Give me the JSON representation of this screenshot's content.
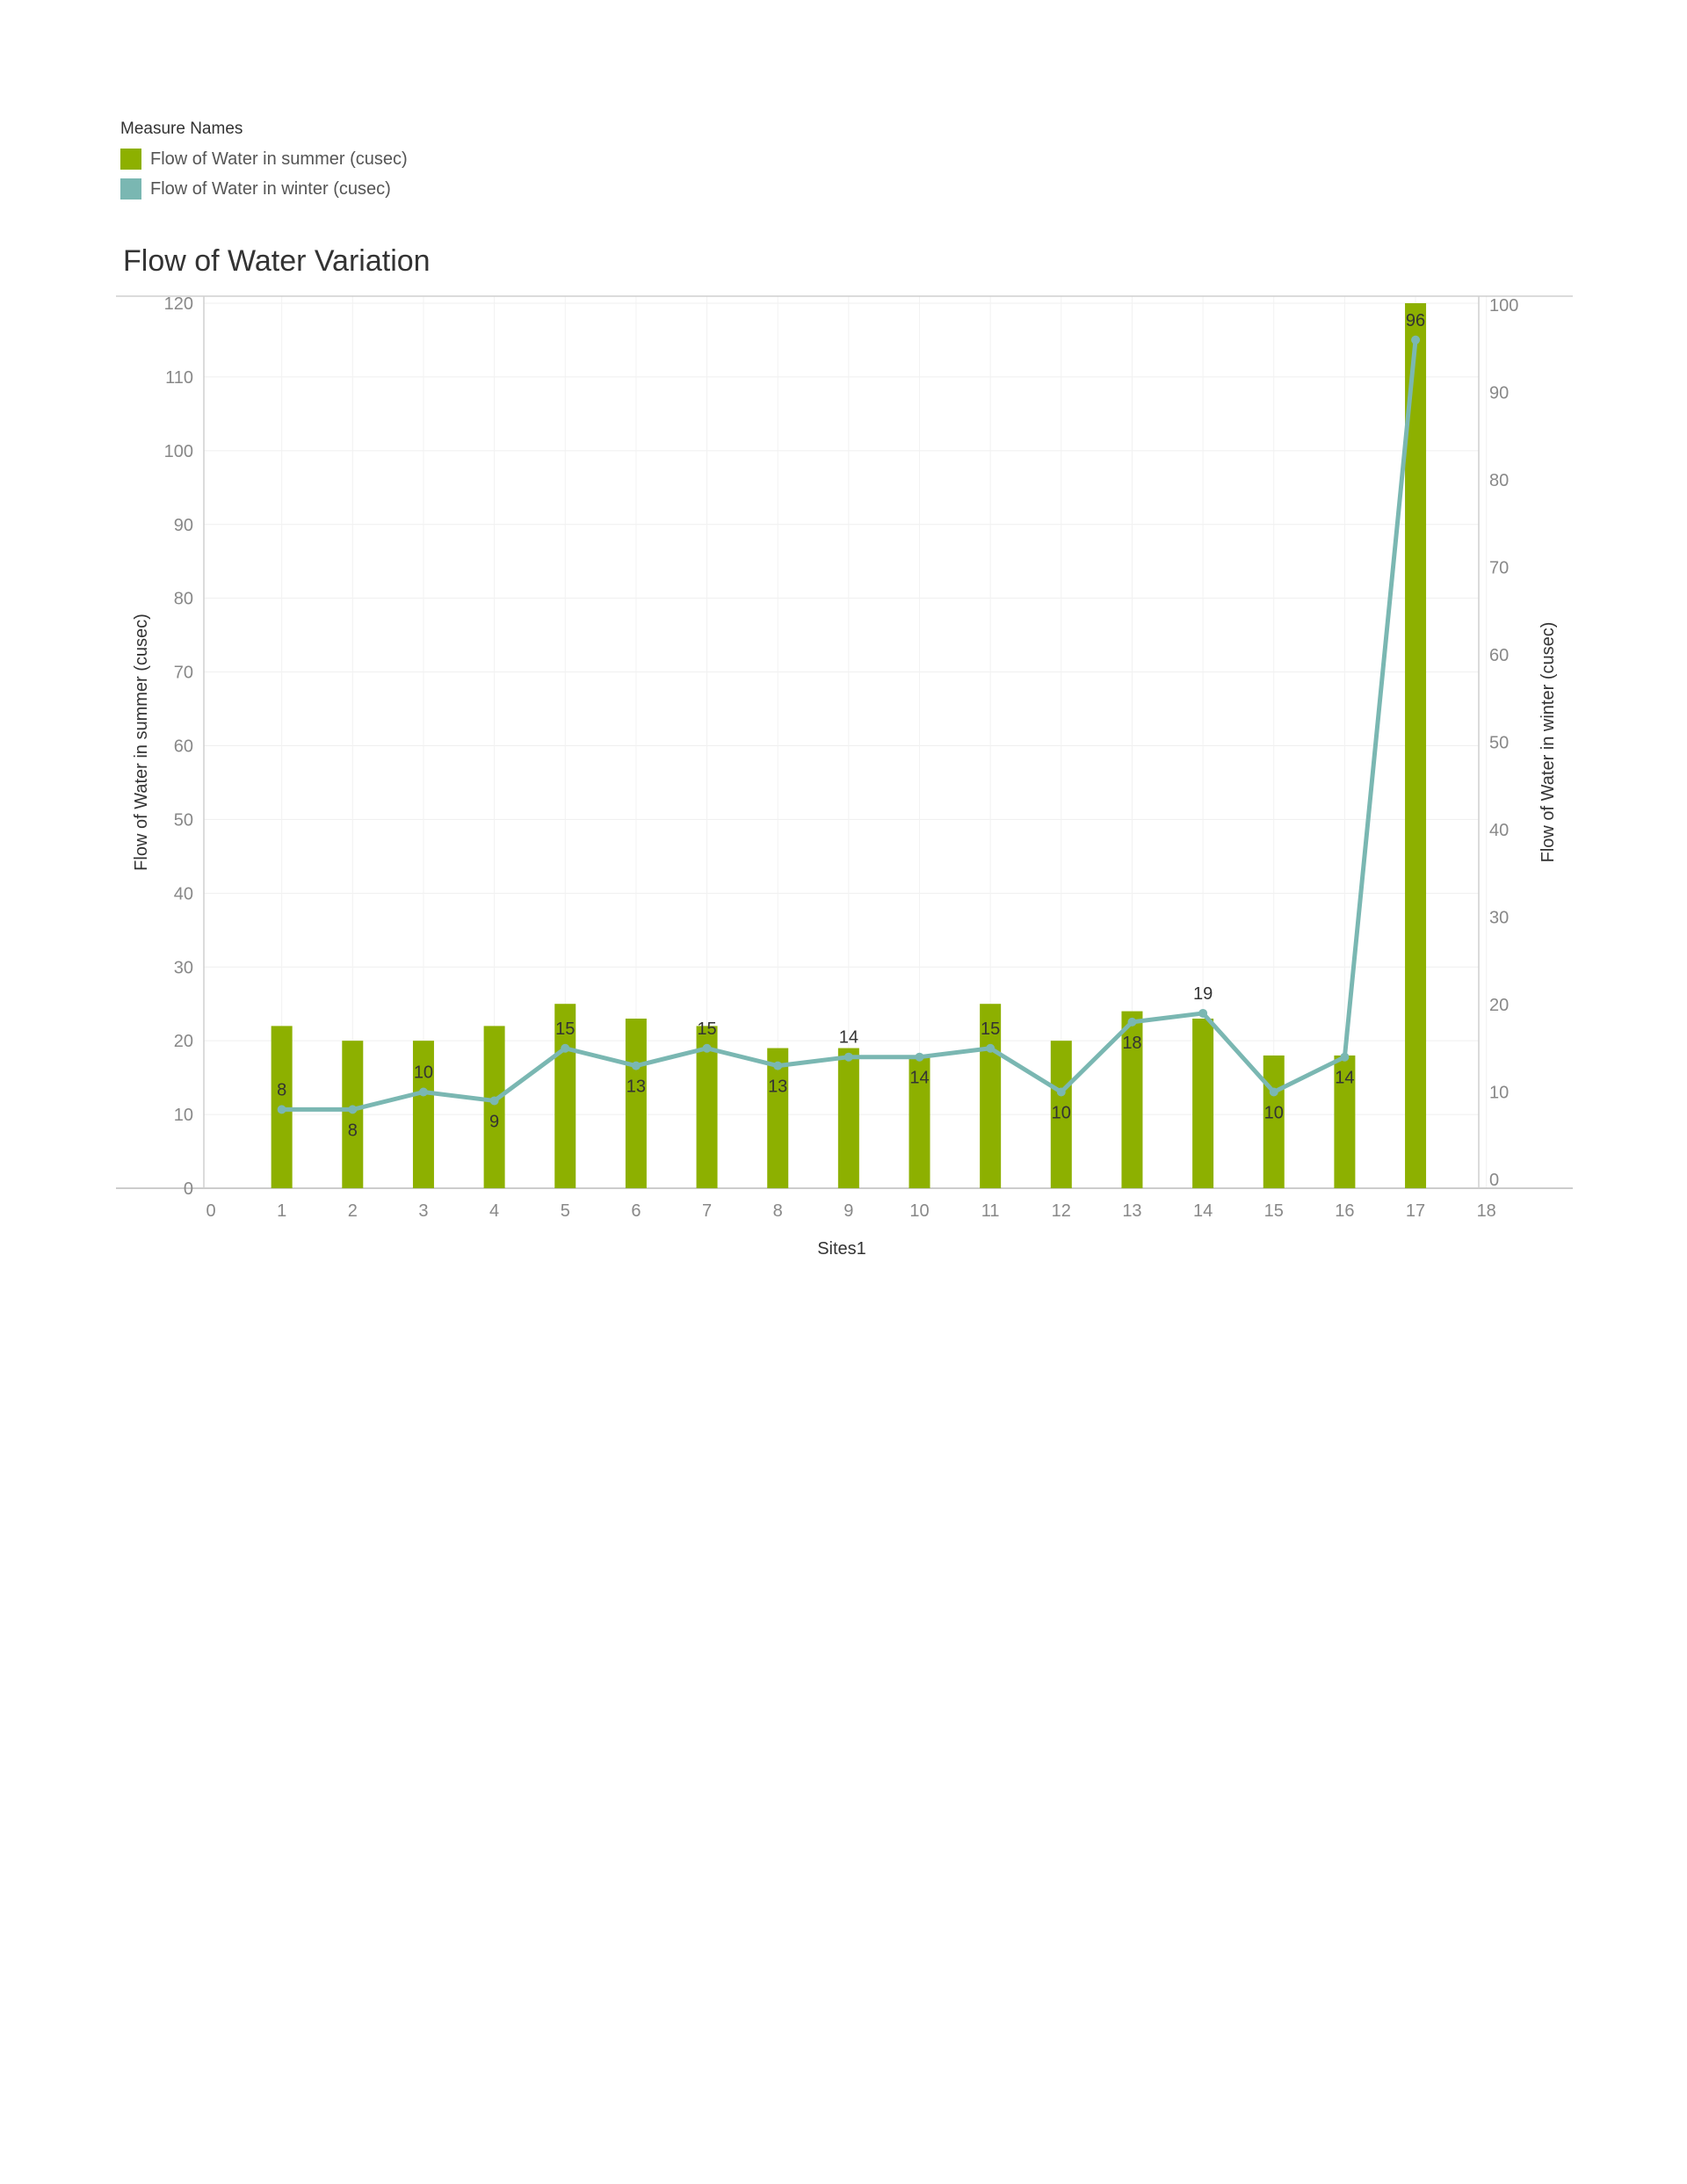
{
  "legend": {
    "title": "Measure Names",
    "items": [
      {
        "label": "Flow of Water in summer (cusec)",
        "color": "#8db000"
      },
      {
        "label": "Flow of Water in winter (cusec)",
        "color": "#7ab7b2"
      }
    ]
  },
  "chart_data": {
    "type": "bar",
    "title": "Flow of Water Variation",
    "xlabel": "Sites1",
    "ylabel": "Flow of Water in summer (cusec)",
    "y2label": "Flow of Water in winter (cusec)",
    "xlim": [
      0,
      18
    ],
    "ylim": [
      0,
      120
    ],
    "y2lim": [
      0,
      100
    ],
    "x_ticks": [
      0,
      1,
      2,
      3,
      4,
      5,
      6,
      7,
      8,
      9,
      10,
      11,
      12,
      13,
      14,
      15,
      16,
      17,
      18
    ],
    "y_ticks": [
      0,
      10,
      20,
      30,
      40,
      50,
      60,
      70,
      80,
      90,
      100,
      110,
      120
    ],
    "y2_ticks": [
      0,
      10,
      20,
      30,
      40,
      50,
      60,
      70,
      80,
      90,
      100
    ],
    "grid": true,
    "legend_position": "top-left",
    "x": [
      1,
      2,
      3,
      4,
      5,
      6,
      7,
      8,
      9,
      10,
      11,
      12,
      13,
      14,
      15,
      16,
      17
    ],
    "series": [
      {
        "name": "Flow of Water in summer (cusec)",
        "type": "bar",
        "axis": "left",
        "color": "#8db000",
        "values": [
          22,
          20,
          20,
          22,
          25,
          23,
          22,
          19,
          19,
          18,
          25,
          20,
          24,
          23,
          18,
          18,
          120
        ]
      },
      {
        "name": "Flow of Water in winter (cusec)",
        "type": "line",
        "axis": "right",
        "color": "#7ab7b2",
        "values": [
          8,
          8,
          10,
          9,
          15,
          13,
          15,
          13,
          14,
          14,
          15,
          10,
          18,
          19,
          10,
          14,
          96
        ]
      }
    ]
  }
}
